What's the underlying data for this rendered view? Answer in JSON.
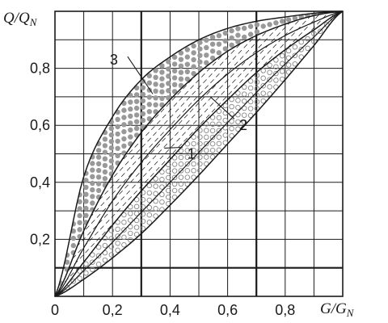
{
  "chart_data": {
    "type": "line",
    "xlabel": {
      "main": "G/G",
      "sub": "N"
    },
    "ylabel": {
      "main": "Q/Q",
      "sub": "N"
    },
    "xlim": [
      0,
      1.0
    ],
    "ylim": [
      0,
      1.0
    ],
    "x_ticks": [
      {
        "value": 0,
        "label": "0"
      },
      {
        "value": 0.2,
        "label": "0,2"
      },
      {
        "value": 0.4,
        "label": "0,4"
      },
      {
        "value": 0.6,
        "label": "0,6"
      },
      {
        "value": 0.8,
        "label": "0,8"
      }
    ],
    "y_ticks": [
      {
        "value": 0.2,
        "label": "0,2"
      },
      {
        "value": 0.4,
        "label": "0,4"
      },
      {
        "value": 0.6,
        "label": "0,6"
      },
      {
        "value": 0.8,
        "label": "0,8"
      }
    ],
    "grid": true,
    "grid_step": 0.1,
    "bold_gridlines_x": [
      0.3,
      0.7
    ],
    "bold_gridlines_y": [
      0.1
    ],
    "x": [
      0,
      0.1,
      0.2,
      0.3,
      0.4,
      0.5,
      0.6,
      0.7,
      0.8,
      0.9,
      1.0
    ],
    "bands": [
      {
        "label": "1",
        "fill": "open-circles",
        "lower": [
          0,
          0.06,
          0.135,
          0.22,
          0.32,
          0.425,
          0.535,
          0.645,
          0.76,
          0.88,
          1.0
        ],
        "upper": [
          0,
          0.12,
          0.25,
          0.37,
          0.48,
          0.59,
          0.69,
          0.785,
          0.865,
          0.935,
          1.0
        ]
      },
      {
        "label": "2",
        "fill": "hatched",
        "lower": [
          0,
          0.12,
          0.25,
          0.37,
          0.48,
          0.59,
          0.69,
          0.785,
          0.865,
          0.935,
          1.0
        ],
        "upper": [
          0,
          0.23,
          0.425,
          0.575,
          0.69,
          0.785,
          0.86,
          0.915,
          0.955,
          0.985,
          1.0
        ]
      },
      {
        "label": "3",
        "fill": "filled-dots",
        "lower": [
          0,
          0.23,
          0.425,
          0.575,
          0.69,
          0.785,
          0.86,
          0.915,
          0.955,
          0.985,
          1.0
        ],
        "upper": [
          0,
          0.42,
          0.63,
          0.76,
          0.84,
          0.9,
          0.94,
          0.965,
          0.98,
          0.993,
          1.0
        ]
      }
    ],
    "extra_curves": [
      {
        "y": [
          0,
          0.17,
          0.335,
          0.47,
          0.585,
          0.69,
          0.78,
          0.855,
          0.915,
          0.962,
          1.0
        ]
      },
      {
        "y": [
          0,
          0.09,
          0.19,
          0.295,
          0.4,
          0.505,
          0.61,
          0.715,
          0.815,
          0.91,
          1.0
        ]
      }
    ],
    "labels": [
      {
        "text": "1",
        "at": [
          0.46,
          0.5
        ],
        "leader_to": [
          0.38,
          0.52
        ]
      },
      {
        "text": "2",
        "at": [
          0.64,
          0.6
        ],
        "leader_to": [
          0.54,
          0.7
        ]
      },
      {
        "text": "3",
        "at": [
          0.23,
          0.83
        ],
        "leader_to": [
          0.34,
          0.71
        ]
      }
    ],
    "colors": {
      "line": "#1a1a1a",
      "grid": "#1a1a1a",
      "dots": "#999999",
      "open_circle": "#888888"
    }
  }
}
